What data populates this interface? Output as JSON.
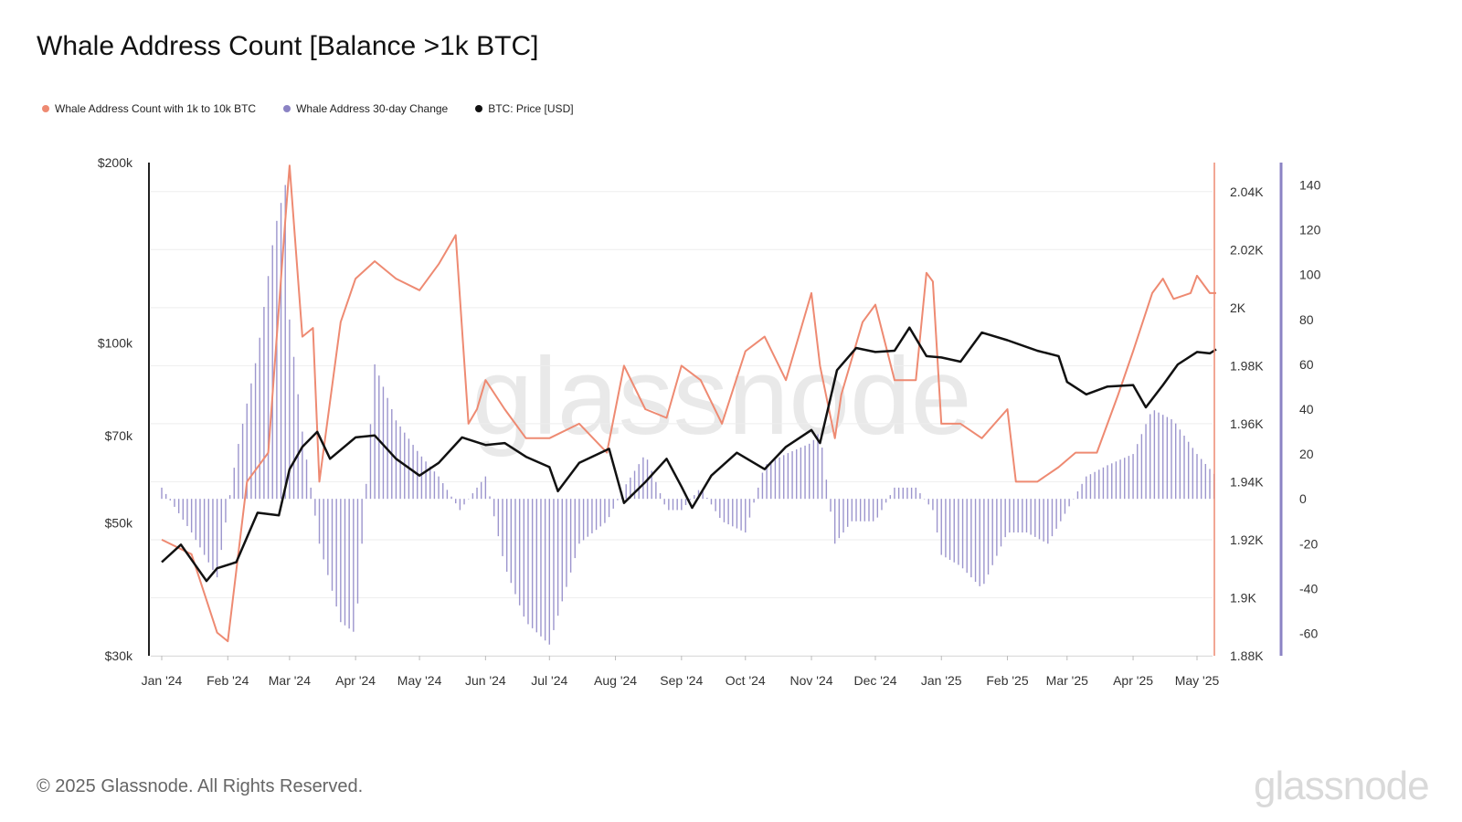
{
  "title": "Whale Address Count [Balance >1k BTC]",
  "legend": [
    {
      "label": "Whale Address Count with 1k to 10k BTC",
      "color": "#ee8a72"
    },
    {
      "label": "Whale Address 30-day Change",
      "color": "#8b83c4"
    },
    {
      "label": "BTC: Price [USD]",
      "color": "#111111"
    }
  ],
  "footer": "© 2025 Glassnode. All Rights Reserved.",
  "brand": "glassnode",
  "watermark": "glassnode",
  "chart_data": {
    "type": "line",
    "title": "Whale Address Count [Balance >1k BTC]",
    "x_tick_labels": [
      "Jan '24",
      "Feb '24",
      "Mar '24",
      "Apr '24",
      "May '24",
      "Jun '24",
      "Jul '24",
      "Aug '24",
      "Sep '24",
      "Oct '24",
      "Nov '24",
      "Dec '24",
      "Jan '25",
      "Feb '25",
      "Mar '25",
      "Apr '25",
      "May '25"
    ],
    "grid": true,
    "axes": {
      "price": {
        "side": "left",
        "scale": "log",
        "range": [
          30000,
          200000
        ],
        "ticks": [
          200000,
          100000,
          70000,
          50000,
          30000
        ],
        "tick_labels": [
          "$200k",
          "$100k",
          "$70k",
          "$50k",
          "$30k"
        ]
      },
      "count": {
        "side": "right",
        "scale": "linear",
        "range": [
          1880,
          2050
        ],
        "ticks": [
          2040,
          2020,
          2000,
          1980,
          1960,
          1940,
          1920,
          1900,
          1880
        ],
        "tick_labels": [
          "2.04K",
          "2.02K",
          "2K",
          "1.98K",
          "1.96K",
          "1.94K",
          "1.92K",
          "1.9K",
          "1.88K"
        ],
        "color": "#ee8a72"
      },
      "change": {
        "side": "far-right",
        "scale": "linear",
        "range": [
          -70,
          150
        ],
        "ticks": [
          140,
          120,
          100,
          80,
          60,
          40,
          20,
          0,
          -20,
          -40,
          -60
        ],
        "tick_labels": [
          "140",
          "120",
          "100",
          "80",
          "60",
          "40",
          "20",
          "0",
          "-20",
          "-40",
          "-60"
        ],
        "color": "#8b83c4"
      }
    },
    "series": [
      {
        "name": "Whale Address Count with 1k to 10k BTC",
        "axis": "count",
        "color": "#ee8a72",
        "dates": [
          "Jan 1 '24",
          "Jan 15 '24",
          "Jan 27 '24",
          "Feb 1 '24",
          "Feb 10 '24",
          "Feb 20 '24",
          "Feb 28 '24",
          "Mar 1 '24",
          "Mar 7 '24",
          "Mar 12 '24",
          "Mar 15 '24",
          "Mar 25 '24",
          "Apr 1 '24",
          "Apr 10 '24",
          "Apr 20 '24",
          "May 1 '24",
          "May 10 '24",
          "May 18 '24",
          "May 24 '24",
          "May 28 '24",
          "Jun 1 '24",
          "Jun 10 '24",
          "Jun 20 '24",
          "Jul 1 '24",
          "Jul 15 '24",
          "Jul 28 '24",
          "Aug 5 '24",
          "Aug 15 '24",
          "Aug 25 '24",
          "Sep 1 '24",
          "Sep 10 '24",
          "Sep 20 '24",
          "Oct 1 '24",
          "Oct 10 '24",
          "Oct 20 '24",
          "Nov 1 '24",
          "Nov 5 '24",
          "Nov 12 '24",
          "Nov 15 '24",
          "Nov 25 '24",
          "Dec 1 '24",
          "Dec 10 '24",
          "Dec 20 '24",
          "Dec 25 '24",
          "Dec 28 '24",
          "Jan 1 '25",
          "Jan 10 '25",
          "Jan 20 '25",
          "Feb 1 '25",
          "Feb 5 '25",
          "Feb 15 '25",
          "Feb 25 '25",
          "Mar 5 '25",
          "Mar 15 '25",
          "Mar 25 '25",
          "Apr 1 '25",
          "Apr 10 '25",
          "Apr 15 '25",
          "Apr 20 '25",
          "Apr 28 '25",
          "May 1 '25",
          "May 7 '25",
          "May 10 '25"
        ],
        "values": [
          1920,
          1915,
          1888,
          1885,
          1940,
          1950,
          2030,
          2049,
          1990,
          1993,
          1940,
          1995,
          2010,
          2016,
          2010,
          2006,
          2015,
          2025,
          1960,
          1965,
          1975,
          1965,
          1955,
          1955,
          1960,
          1950,
          1980,
          1965,
          1962,
          1980,
          1975,
          1960,
          1985,
          1990,
          1975,
          2005,
          1980,
          1955,
          1970,
          1995,
          2001,
          1975,
          1975,
          2012,
          2009,
          1960,
          1960,
          1955,
          1965,
          1940,
          1940,
          1945,
          1950,
          1950,
          1970,
          1985,
          2005,
          2010,
          2003,
          2005,
          2011,
          2005,
          2005
        ]
      },
      {
        "name": "Whale Address 30-day Change",
        "axis": "change",
        "color": "#8b83c4",
        "type": "bar",
        "dates": [
          "Jan 1 '24",
          "Jan 15 '24",
          "Jan 27 '24",
          "Feb 5 '24",
          "Feb 15 '24",
          "Feb 23 '24",
          "Feb 28 '24",
          "Mar 1 '24",
          "Mar 7 '24",
          "Mar 15 '24",
          "Mar 25 '24",
          "Apr 1 '24",
          "Apr 10 '24",
          "Apr 20 '24",
          "May 1 '24",
          "May 10 '24",
          "May 20 '24",
          "May 28 '24",
          "Jun 1 '24",
          "Jun 10 '24",
          "Jun 20 '24",
          "Jul 1 '24",
          "Jul 15 '24",
          "Jul 28 '24",
          "Aug 5 '24",
          "Aug 15 '24",
          "Aug 25 '24",
          "Sep 1 '24",
          "Sep 10 '24",
          "Sep 20 '24",
          "Oct 1 '24",
          "Oct 10 '24",
          "Oct 20 '24",
          "Nov 1 '24",
          "Nov 5 '24",
          "Nov 12 '24",
          "Nov 20 '24",
          "Dec 1 '24",
          "Dec 10 '24",
          "Dec 20 '24",
          "Dec 28 '24",
          "Jan 1 '25",
          "Jan 10 '25",
          "Jan 20 '25",
          "Feb 1 '25",
          "Feb 10 '25",
          "Feb 20 '25",
          "Mar 1 '25",
          "Mar 10 '25",
          "Mar 20 '25",
          "Apr 1 '25",
          "Apr 10 '25",
          "Apr 20 '25",
          "May 1 '25",
          "May 10 '25"
        ],
        "values": [
          5,
          -15,
          -35,
          20,
          65,
          120,
          140,
          80,
          30,
          -20,
          -55,
          -60,
          60,
          35,
          20,
          10,
          -5,
          5,
          10,
          -30,
          -55,
          -65,
          -20,
          -10,
          5,
          20,
          -5,
          -5,
          5,
          -10,
          -15,
          15,
          20,
          25,
          30,
          -20,
          -10,
          -10,
          5,
          5,
          -5,
          -25,
          -30,
          -40,
          -15,
          -15,
          -20,
          -5,
          10,
          15,
          20,
          40,
          35,
          20,
          10
        ]
      },
      {
        "name": "BTC: Price [USD]",
        "axis": "price",
        "color": "#111111",
        "dates": [
          "Jan 1 '24",
          "Jan 10 '24",
          "Jan 22 '24",
          "Jan 27 '24",
          "Feb 5 '24",
          "Feb 15 '24",
          "Feb 25 '24",
          "Mar 1 '24",
          "Mar 7 '24",
          "Mar 14 '24",
          "Mar 20 '24",
          "Apr 1 '24",
          "Apr 10 '24",
          "Apr 20 '24",
          "May 1 '24",
          "May 10 '24",
          "May 21 '24",
          "Jun 1 '24",
          "Jun 10 '24",
          "Jun 20 '24",
          "Jul 1 '24",
          "Jul 5 '24",
          "Jul 15 '24",
          "Jul 29 '24",
          "Aug 5 '24",
          "Aug 15 '24",
          "Aug 25 '24",
          "Sep 1 '24",
          "Sep 6 '24",
          "Sep 15 '24",
          "Sep 27 '24",
          "Oct 10 '24",
          "Oct 20 '24",
          "Nov 1 '24",
          "Nov 5 '24",
          "Nov 13 '24",
          "Nov 22 '24",
          "Dec 1 '24",
          "Dec 10 '24",
          "Dec 17 '24",
          "Dec 25 '24",
          "Jan 1 '25",
          "Jan 10 '25",
          "Jan 20 '25",
          "Feb 1 '25",
          "Feb 15 '25",
          "Feb 25 '25",
          "Mar 1 '25",
          "Mar 10 '25",
          "Mar 20 '25",
          "Apr 1 '25",
          "Apr 7 '25",
          "Apr 15 '25",
          "Apr 22 '25",
          "May 1 '25",
          "May 7 '25",
          "May 10 '25"
        ],
        "values": [
          43000,
          46000,
          40000,
          42000,
          43000,
          52000,
          51500,
          61500,
          67000,
          71000,
          64000,
          69500,
          70000,
          64000,
          60000,
          63000,
          69500,
          67500,
          68000,
          64500,
          62000,
          56500,
          63000,
          66500,
          54000,
          58500,
          64000,
          57500,
          53000,
          60000,
          65500,
          61500,
          67000,
          71500,
          68000,
          90000,
          98000,
          96500,
          97000,
          106000,
          95000,
          94500,
          93000,
          104000,
          101000,
          97000,
          95000,
          86000,
          82000,
          84500,
          85000,
          78000,
          85000,
          92000,
          96500,
          96000,
          97500
        ]
      }
    ]
  }
}
